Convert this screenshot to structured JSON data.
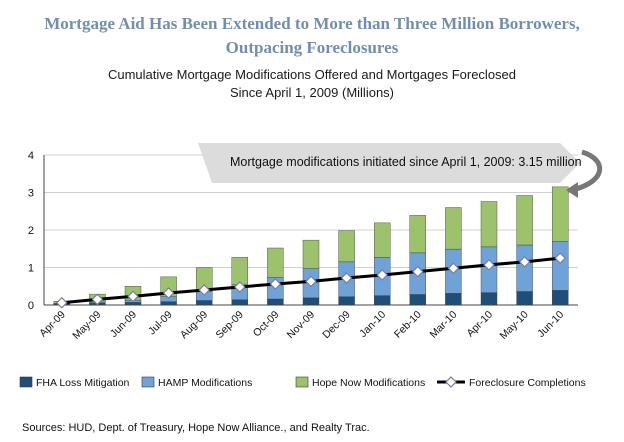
{
  "title_line1": "Mortgage Aid Has Been Extended to More than Three Million Borrowers,",
  "title_line2": "Outpacing Foreclosures",
  "subtitle_line1": "Cumulative Mortgage Modifications Offered and Mortgages Foreclosed",
  "subtitle_line2": "Since April 1, 2009 (Millions)",
  "callout": "Mortgage modifications initiated since April 1, 2009:  3.15 million",
  "source": "Sources:  HUD, Dept. of Treasury, Hope Now Alliance., and Realty Trac.",
  "colors": {
    "title": "#6f8fb2",
    "fha": "#1f4e79",
    "hamp": "#6fa3d8",
    "hope": "#9cc26b",
    "line": "#000000",
    "marker": "#ffffff",
    "callout_bg": "#dcdcdc"
  },
  "chart_data": {
    "type": "bar",
    "stacked": true,
    "categories": [
      "Apr-09",
      "May-09",
      "Jun-09",
      "Jul-09",
      "Aug-09",
      "Sep-09",
      "Oct-09",
      "Nov-09",
      "Dec-09",
      "Jan-10",
      "Feb-10",
      "Mar-10",
      "Apr-10",
      "May-10",
      "Jun-10"
    ],
    "ylim": [
      0,
      4
    ],
    "yticks": [
      "0",
      "1",
      "2",
      "3",
      "4"
    ],
    "series": [
      {
        "name": "FHA Loss Mitigation",
        "kind": "bar",
        "color": "#1f4e79",
        "values": [
          0.03,
          0.05,
          0.07,
          0.09,
          0.12,
          0.14,
          0.16,
          0.19,
          0.22,
          0.25,
          0.28,
          0.31,
          0.33,
          0.36,
          0.39
        ]
      },
      {
        "name": "HAMP Modifications",
        "kind": "bar",
        "color": "#6fa3d8",
        "values": [
          0.01,
          0.03,
          0.06,
          0.13,
          0.25,
          0.4,
          0.58,
          0.78,
          0.93,
          1.02,
          1.11,
          1.18,
          1.22,
          1.24,
          1.31
        ]
      },
      {
        "name": "Hope Now Modifications",
        "kind": "bar",
        "color": "#9cc26b",
        "values": [
          0.06,
          0.21,
          0.37,
          0.53,
          0.63,
          0.73,
          0.78,
          0.76,
          0.83,
          0.92,
          1.0,
          1.11,
          1.21,
          1.32,
          1.45
        ]
      },
      {
        "name": "Foreclosure Completions",
        "kind": "line",
        "color": "#000000",
        "values": [
          0.06,
          0.15,
          0.23,
          0.32,
          0.4,
          0.48,
          0.56,
          0.63,
          0.72,
          0.8,
          0.89,
          0.98,
          1.07,
          1.15,
          1.25
        ]
      }
    ],
    "annotation": "Mortgage modifications initiated since April 1, 2009:  3.15 million",
    "legend_position": "bottom"
  }
}
